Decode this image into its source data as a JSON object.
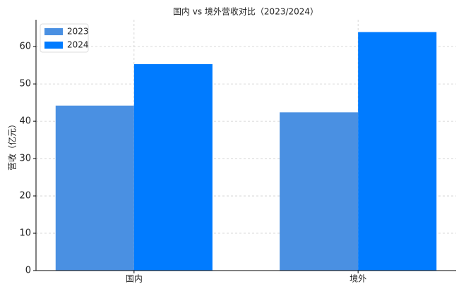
{
  "chart_data": {
    "type": "bar",
    "title": "国内 vs 境外营收对比（2023/2024）",
    "ylabel": "营收（亿元）",
    "categories": [
      "国内",
      "境外"
    ],
    "series": [
      {
        "name": "2023",
        "color": "#4a90e2",
        "values": [
          44.2,
          42.4
        ]
      },
      {
        "name": "2024",
        "color": "#007bff",
        "values": [
          55.3,
          63.9
        ]
      }
    ],
    "ylim": [
      0,
      67.2
    ],
    "yticks": [
      0,
      10,
      20,
      30,
      40,
      50,
      60
    ],
    "grid": true,
    "legend": "upper left"
  }
}
